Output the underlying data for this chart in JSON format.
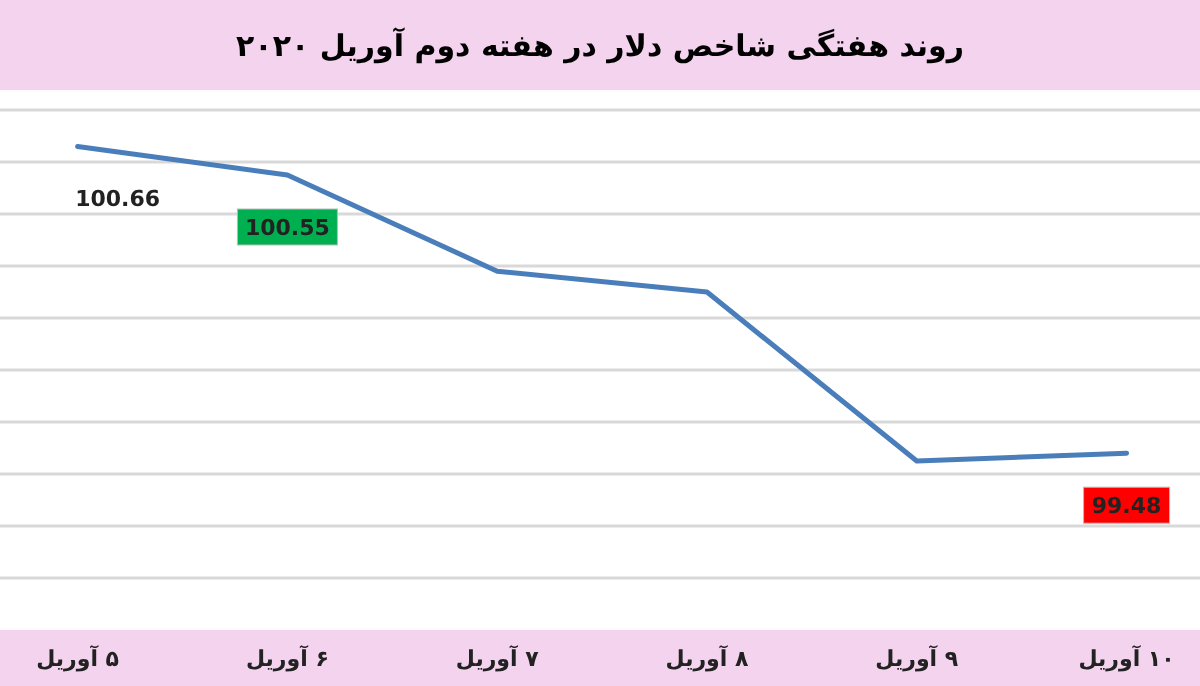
{
  "chart_data": {
    "type": "line",
    "title": "روند هفتگی شاخص دلار در هفته دوم آوریل ۲۰۲۰",
    "categories": [
      "۵ آوریل",
      "۶ آوریل",
      "۷ آوریل",
      "۸ آوریل",
      "۹ آوریل",
      "۱۰ آوریل"
    ],
    "series": [
      {
        "color": "#4a7ebb",
        "values": [
          100.66,
          100.55,
          100.18,
          100.1,
          99.45,
          99.48
        ],
        "value_labels": [
          "100.66",
          "100.55",
          null,
          null,
          null,
          "99.48"
        ]
      }
    ],
    "ylim": [
      99,
      100.8
    ],
    "yticks": [
      {
        "value": 99,
        "label": null
      },
      {
        "value": 99.2,
        "label": null
      },
      {
        "value": 99.4,
        "label": null
      },
      {
        "value": 99.6,
        "label": null
      },
      {
        "value": 99.8,
        "label": null
      },
      {
        "value": 100,
        "label": null
      },
      {
        "value": 100.2,
        "label": null
      },
      {
        "value": 100.4,
        "label": null
      },
      {
        "value": 100.6,
        "label": null
      },
      {
        "value": 100.8,
        "label": null
      }
    ],
    "tick_labels": "x",
    "grid": "y",
    "marker": "none"
  }
}
